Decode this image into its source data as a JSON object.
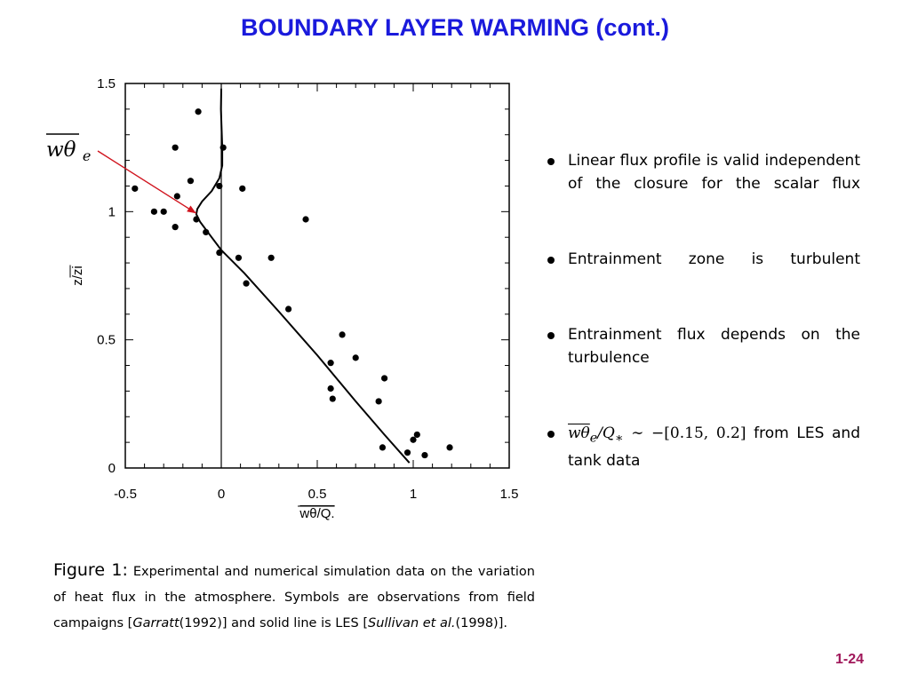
{
  "slide": {
    "title": "BOUNDARY LAYER WARMING (cont.)",
    "page_number": "1-24",
    "accent_color": "#1a1adc",
    "page_number_color": "#a0175a"
  },
  "chart_data": {
    "type": "scatter",
    "xlim": [
      -0.5,
      1.5
    ],
    "ylim": [
      0,
      1.5
    ],
    "xticks": [
      "-0.5",
      "0",
      "0.5",
      "1",
      "1.5"
    ],
    "yticks": [
      "0",
      "0.5",
      "1",
      "1.5"
    ],
    "xlabel": "wθ/Q.",
    "ylabel": "z/zi",
    "annotation": "wθe",
    "annotation_arrow_color": "#d0141e",
    "observations": {
      "x": [
        -0.45,
        -0.35,
        -0.3,
        -0.24,
        -0.23,
        -0.12,
        -0.08,
        -0.01,
        0.09,
        0.13,
        0.26,
        0.35,
        0.44,
        0.63,
        0.57,
        0.7,
        0.57,
        0.58,
        0.82,
        0.85,
        0.84,
        0.97,
        1.0,
        1.02,
        1.06,
        1.19,
        -0.24,
        -0.16,
        -0.13,
        -0.01,
        0.01,
        0.11
      ],
      "y": [
        1.09,
        1.0,
        1.0,
        0.94,
        1.06,
        1.39,
        0.92,
        0.84,
        0.82,
        0.72,
        0.82,
        0.62,
        0.97,
        0.52,
        0.41,
        0.43,
        0.31,
        0.27,
        0.26,
        0.35,
        0.08,
        0.06,
        0.11,
        0.13,
        0.05,
        0.08,
        1.25,
        1.12,
        0.97,
        1.1,
        1.25,
        1.09
      ]
    },
    "les_profile": {
      "x": [
        0.98,
        0.85,
        0.7,
        0.5,
        0.3,
        0.12,
        0.0,
        -0.06,
        -0.11,
        -0.13,
        -0.125,
        -0.1,
        -0.05,
        -0.01,
        0.005,
        0.005,
        0.002,
        -0.002,
        0.0
      ],
      "y": [
        0.02,
        0.13,
        0.26,
        0.44,
        0.61,
        0.76,
        0.85,
        0.91,
        0.96,
        0.99,
        1.01,
        1.04,
        1.08,
        1.13,
        1.18,
        1.25,
        1.32,
        1.4,
        1.48
      ]
    }
  },
  "bullets": [
    {
      "text": "Linear flux profile is valid independent of the closure for the scalar flux"
    },
    {
      "text": "Entrainment zone is turbulent"
    },
    {
      "text": "Entrainment flux depends on the turbulence"
    },
    {
      "math_wtheta": "wθ",
      "math_sub_e": "e",
      "math_rest": "/Q",
      "math_sub_star": "∗",
      "math_rel": " ∼ −[0.15, 0.2]",
      "text": "from LES and tank data"
    }
  ],
  "caption": {
    "figure_label": "Figure 1:",
    "text_1": "Experimental and numerical simulation data on the variation of heat flux in the atmosphere. Symbols are observations from field campaigns [",
    "cite_1_author": "Garratt",
    "cite_1_year": "(1992)] and solid line is LES [",
    "cite_2_author": "Sullivan et al.",
    "cite_2_year": "(1998)]."
  }
}
